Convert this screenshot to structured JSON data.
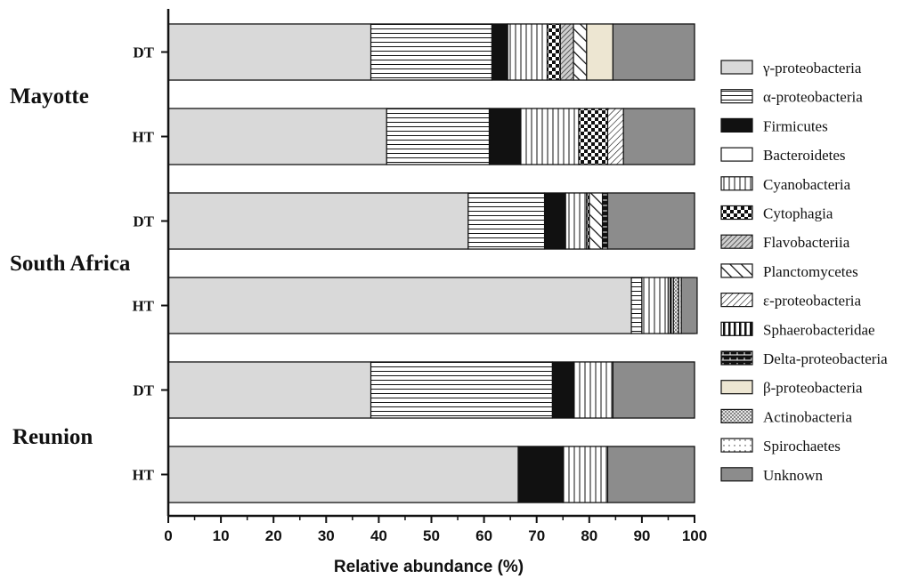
{
  "chart_data": {
    "type": "bar",
    "orientation": "horizontal",
    "stacked": true,
    "xlabel": "Relative abundance (%)",
    "xlim": [
      0,
      100
    ],
    "xticks": [
      "0",
      "10",
      "20",
      "30",
      "40",
      "50",
      "60",
      "70",
      "80",
      "90",
      "100"
    ],
    "legend_position": "right",
    "groups": [
      {
        "name": "Mayotte",
        "rows": [
          0,
          1
        ]
      },
      {
        "name": "South Africa",
        "rows": [
          2,
          3
        ]
      },
      {
        "name": "Reunion",
        "rows": [
          4,
          5
        ]
      }
    ],
    "categories": [
      "DT",
      "HT",
      "DT",
      "HT",
      "DT",
      "HT"
    ],
    "series": [
      {
        "name": "γ-proteobacteria",
        "fill": "gray",
        "color": "#d9d9d9",
        "values": [
          38.5,
          41.5,
          57,
          88,
          38.5,
          66.5
        ]
      },
      {
        "name": "α-proteobacteria",
        "fill": "hlines",
        "color": "#ffffff",
        "values": [
          23,
          19.5,
          14.5,
          2,
          34.5,
          0
        ]
      },
      {
        "name": "Firmicutes",
        "fill": "black",
        "color": "#111111",
        "values": [
          3,
          6,
          4,
          0,
          4,
          8.5
        ]
      },
      {
        "name": "Bacteroidetes",
        "fill": "white",
        "color": "#ffffff",
        "values": [
          0,
          0,
          0,
          0,
          0,
          0
        ]
      },
      {
        "name": "Cyanobacteria",
        "fill": "vlines",
        "color": "#ffffff",
        "values": [
          7.5,
          11,
          4,
          5,
          7.5,
          8.5
        ]
      },
      {
        "name": "Cytophagia",
        "fill": "checker",
        "color": "#111111",
        "values": [
          2.5,
          5.5,
          0.5,
          0,
          0,
          0
        ]
      },
      {
        "name": "Flavobacteriia",
        "fill": "dense-diag",
        "color": "#888888",
        "values": [
          2.5,
          0,
          0,
          0,
          0,
          0
        ]
      },
      {
        "name": "Planctomycetes",
        "fill": "back-diag",
        "color": "#111111",
        "values": [
          2.5,
          0,
          2.5,
          0,
          0,
          0
        ]
      },
      {
        "name": "ε-proteobacteria",
        "fill": "fwd-diag",
        "color": "#111111",
        "values": [
          0,
          3,
          0,
          0,
          0,
          0
        ]
      },
      {
        "name": "Sphaerobacteridae",
        "fill": "thick-vlines",
        "color": "#111111",
        "values": [
          0,
          0,
          0,
          1,
          0,
          0
        ]
      },
      {
        "name": "Delta-proteobacteria",
        "fill": "brick",
        "color": "#111111",
        "values": [
          0,
          0,
          1,
          0,
          0,
          0
        ]
      },
      {
        "name": "β-proteobacteria",
        "fill": "beige",
        "color": "#ede6d2",
        "values": [
          5,
          0,
          0,
          0,
          0,
          0
        ]
      },
      {
        "name": "Actinobacteria",
        "fill": "dots",
        "color": "#aaaaaa",
        "values": [
          0,
          0,
          0,
          1,
          0,
          0
        ]
      },
      {
        "name": "Spirochaetes",
        "fill": "fine-dots",
        "color": "#ffffff",
        "values": [
          0,
          0,
          0,
          0.5,
          0,
          0
        ]
      },
      {
        "name": "Unknown",
        "fill": "darkgray",
        "color": "#8c8c8c",
        "values": [
          15.5,
          13.5,
          16.5,
          3,
          15.5,
          16.5
        ]
      }
    ],
    "residual_row_fill": [
      "white",
      "white",
      "white",
      "white",
      "white",
      "white"
    ]
  }
}
